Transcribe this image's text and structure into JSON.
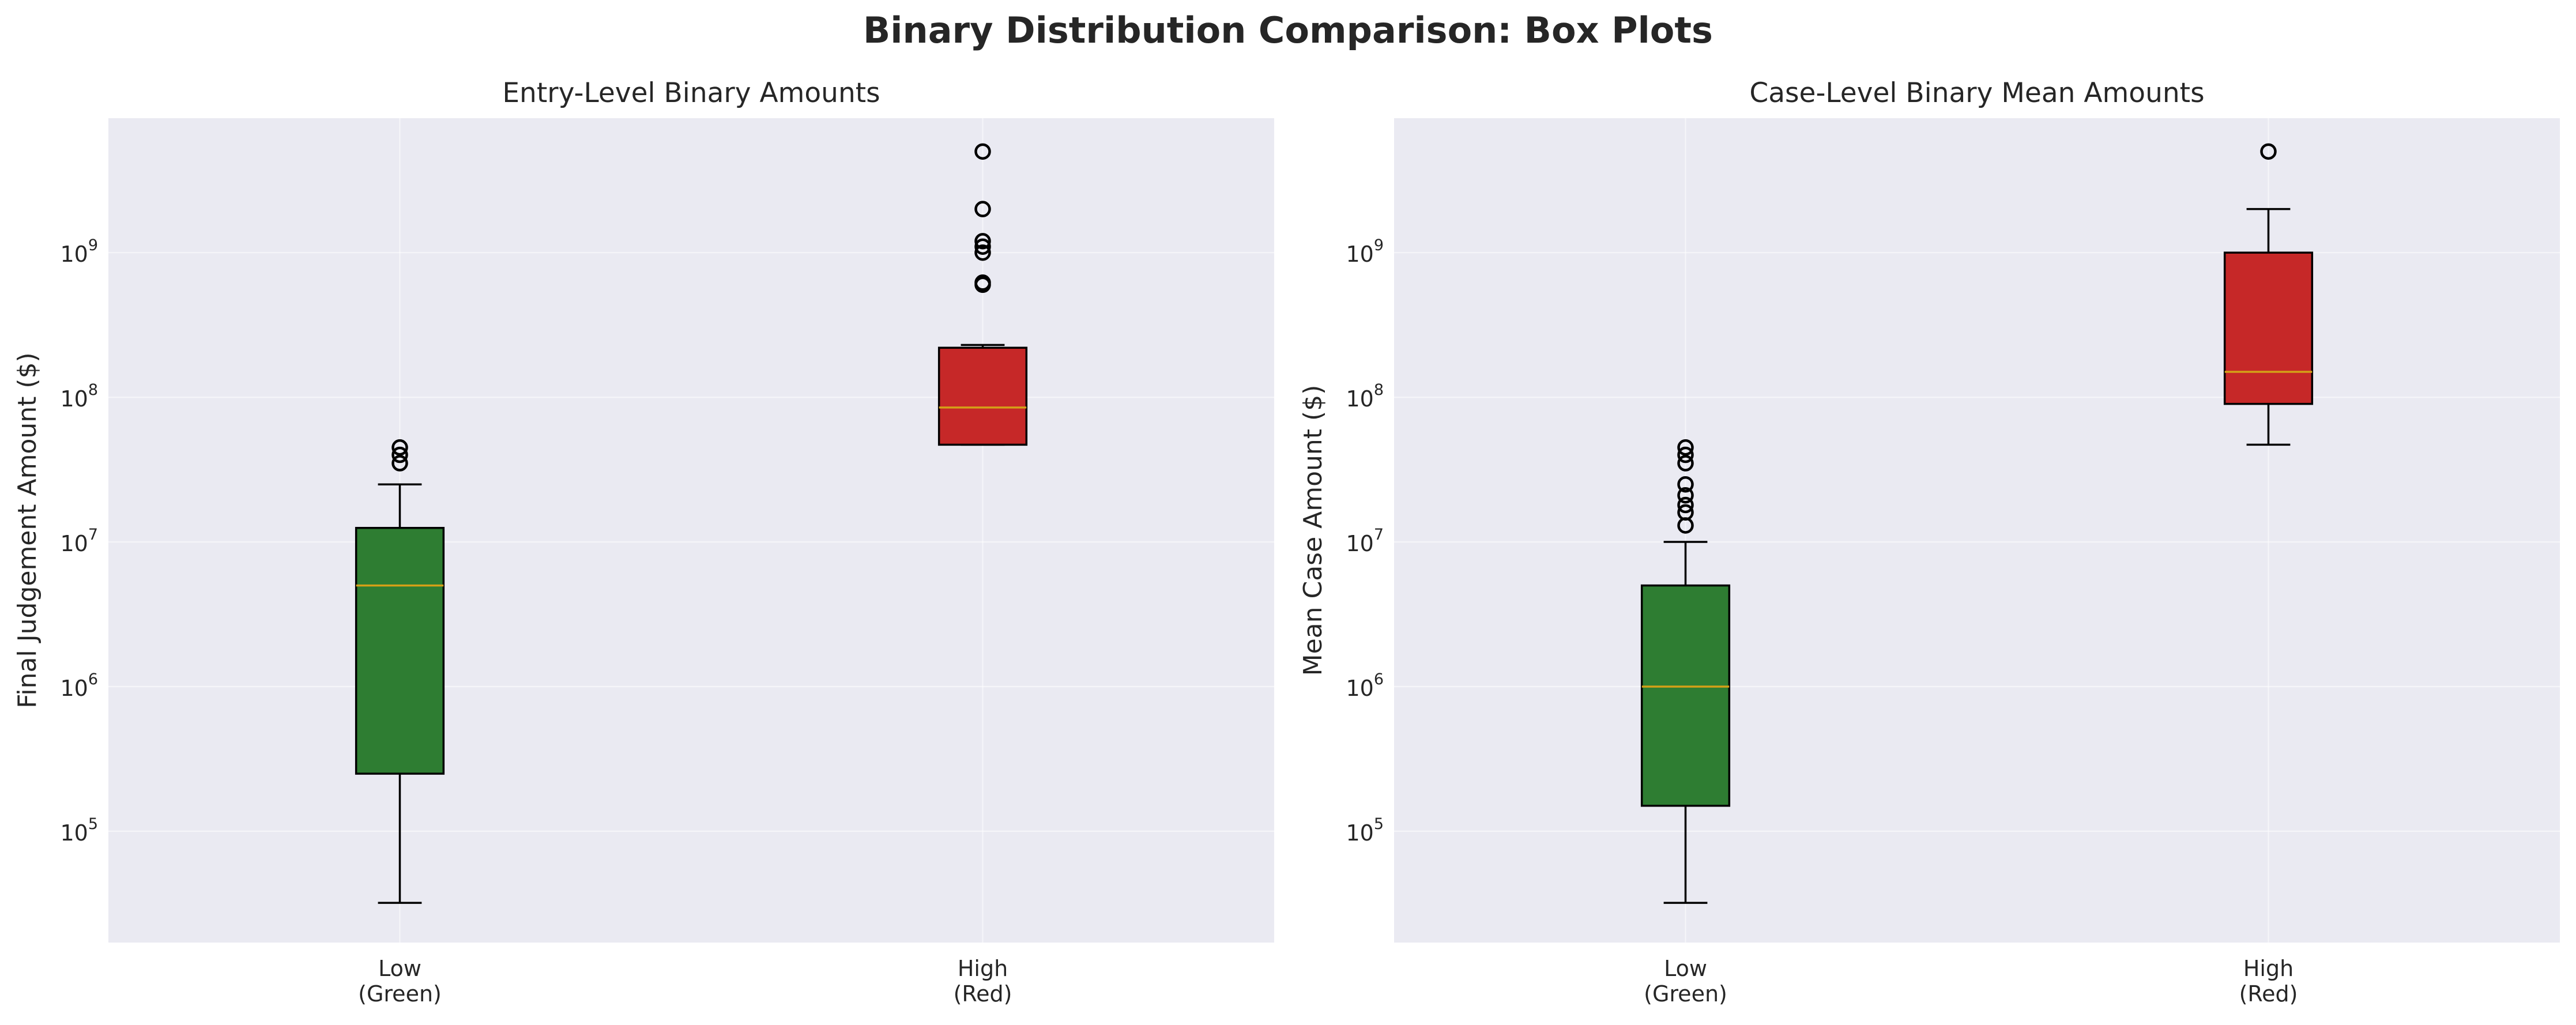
{
  "figure_title": "Binary Distribution Comparison: Box Plots",
  "style": {
    "plot_background": "#eaeaf2",
    "grid_color": "#ffffff",
    "median_color": "#d4a017",
    "box_edge_color": "#000000"
  },
  "chart_data": [
    {
      "type": "box",
      "title": "Entry-Level Binary Amounts",
      "xlabel": "",
      "ylabel": "Final Judgement Amount ($)",
      "yscale": "log",
      "ylim": [
        17000,
        8500000000
      ],
      "yticks": [
        {
          "value": 100000,
          "base": "10",
          "exp": "5"
        },
        {
          "value": 1000000,
          "base": "10",
          "exp": "6"
        },
        {
          "value": 10000000,
          "base": "10",
          "exp": "7"
        },
        {
          "value": 100000000,
          "base": "10",
          "exp": "8"
        },
        {
          "value": 1000000000,
          "base": "10",
          "exp": "9"
        }
      ],
      "grid": true,
      "categories": [
        {
          "line1": "Low",
          "line2": "(Green)"
        },
        {
          "line1": "High",
          "line2": "(Red)"
        }
      ],
      "boxes": [
        {
          "color": "#2e7d32",
          "whisker_low": 32000,
          "q1": 250000,
          "median": 5000000,
          "q3": 12500000,
          "whisker_high": 25000000,
          "fliers": [
            35000000,
            40000000,
            45000000
          ]
        },
        {
          "color": "#c62828",
          "whisker_low": 47000000,
          "q1": 47000000,
          "median": 85000000,
          "q3": 220000000,
          "whisker_high": 230000000,
          "fliers": [
            600000000,
            620000000,
            1000000000,
            1100000000,
            1200000000,
            2000000000,
            5000000000
          ]
        }
      ]
    },
    {
      "type": "box",
      "title": "Case-Level Binary Mean Amounts",
      "xlabel": "",
      "ylabel": "Mean Case Amount ($)",
      "yscale": "log",
      "ylim": [
        17000,
        8500000000
      ],
      "yticks": [
        {
          "value": 100000,
          "base": "10",
          "exp": "5"
        },
        {
          "value": 1000000,
          "base": "10",
          "exp": "6"
        },
        {
          "value": 10000000,
          "base": "10",
          "exp": "7"
        },
        {
          "value": 100000000,
          "base": "10",
          "exp": "8"
        },
        {
          "value": 1000000000,
          "base": "10",
          "exp": "9"
        }
      ],
      "grid": true,
      "categories": [
        {
          "line1": "Low",
          "line2": "(Green)"
        },
        {
          "line1": "High",
          "line2": "(Red)"
        }
      ],
      "boxes": [
        {
          "color": "#2e7d32",
          "whisker_low": 32000,
          "q1": 150000,
          "median": 1000000,
          "q3": 5000000,
          "whisker_high": 10000000,
          "fliers": [
            13000000,
            16000000,
            18000000,
            21000000,
            25000000,
            35000000,
            40000000,
            45000000
          ]
        },
        {
          "color": "#c62828",
          "whisker_low": 47000000,
          "q1": 90000000,
          "median": 150000000,
          "q3": 1000000000,
          "whisker_high": 2000000000,
          "fliers": [
            5000000000
          ]
        }
      ]
    }
  ]
}
